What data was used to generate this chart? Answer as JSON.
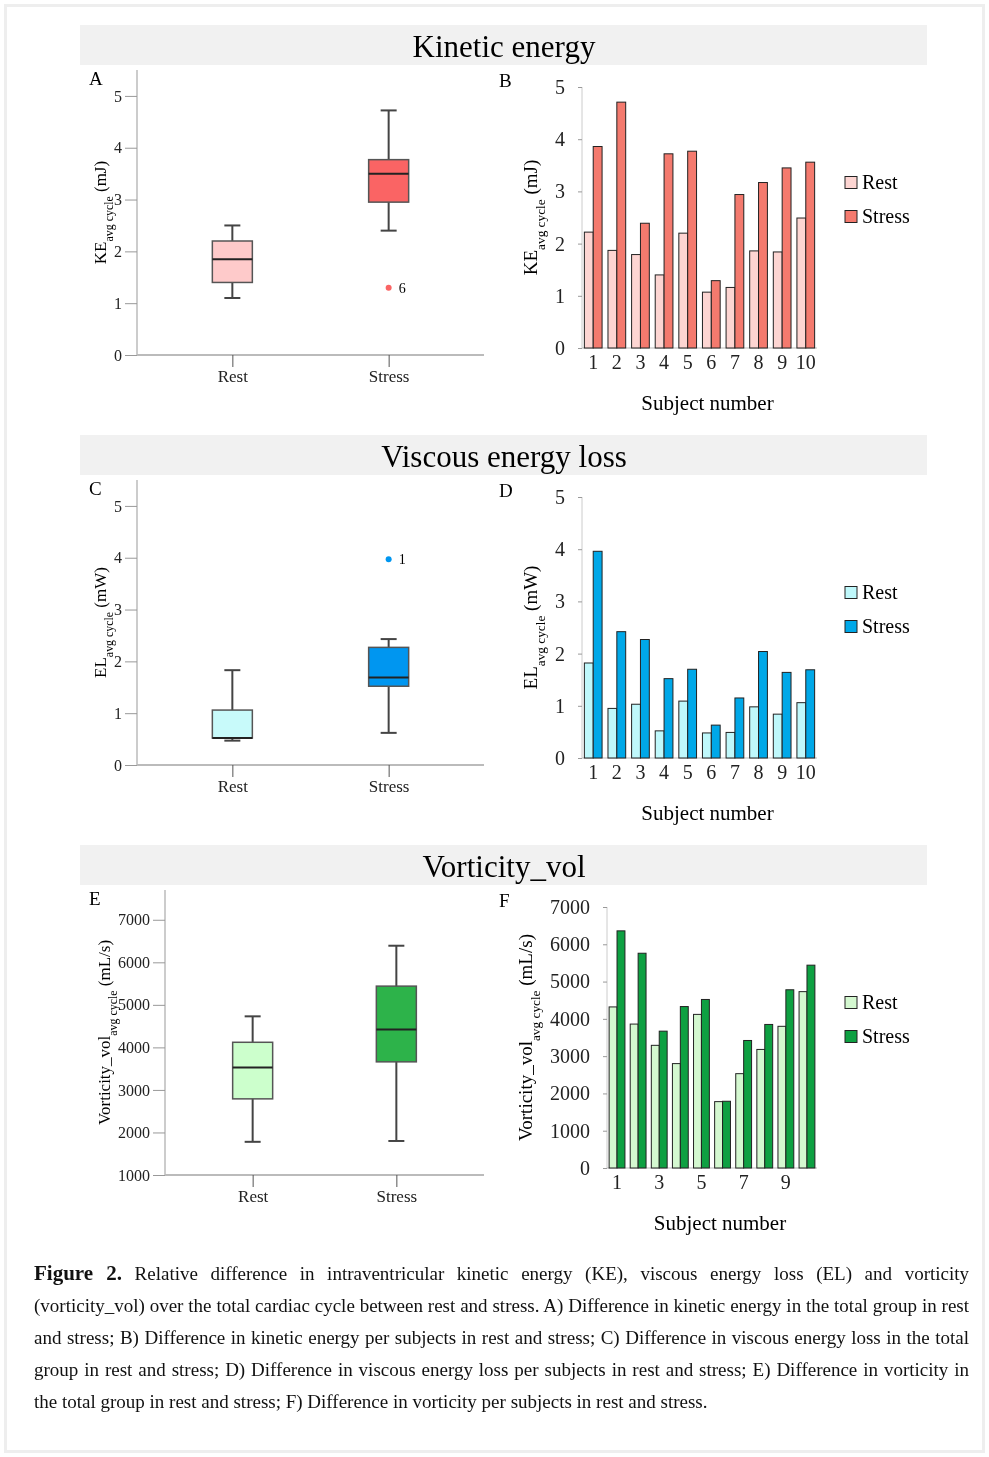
{
  "chart_data": [
    {
      "type": "box",
      "title": "Kinetic energy",
      "ylabel": "KE$_{avg cycle}$ (mJ)",
      "categories": [
        "Rest",
        "Stress"
      ],
      "colors": [
        "#fecaca",
        "#fa6464"
      ],
      "ylim": [
        0,
        5.5
      ],
      "yticks": [
        0,
        1,
        2,
        3,
        4,
        5
      ],
      "boxes": [
        {
          "low": 1.1,
          "q1": 1.4,
          "median": 1.85,
          "q3": 2.2,
          "high": 2.5
        },
        {
          "low": 2.4,
          "q1": 2.95,
          "median": 3.5,
          "q3": 3.77,
          "high": 4.72,
          "outliers": [
            1.3
          ]
        }
      ],
      "annotations": [
        "A",
        "6"
      ]
    },
    {
      "type": "bar",
      "xlabel": "Subject number",
      "ylabel": "KE$_{avg cycle}$ (mJ)",
      "categories": [
        "1",
        "2",
        "3",
        "4",
        "5",
        "6",
        "7",
        "8",
        "9",
        "10"
      ],
      "ylim": [
        0,
        5
      ],
      "yticks": [
        0,
        1,
        2,
        3,
        4,
        5
      ],
      "legend": "right",
      "series": [
        {
          "name": "Rest",
          "color": "#fdd5d2",
          "values": [
            2.22,
            1.87,
            1.79,
            1.4,
            2.2,
            1.07,
            1.16,
            1.86,
            1.84,
            2.49
          ]
        },
        {
          "name": "Stress",
          "color": "#f47a6e",
          "values": [
            3.86,
            4.71,
            2.39,
            3.72,
            3.77,
            1.29,
            2.94,
            3.17,
            3.45,
            3.56
          ]
        }
      ],
      "annotations": [
        "B"
      ]
    },
    {
      "type": "box",
      "title": "Viscous energy loss",
      "ylabel": "EL$_{avg cycle}$ (mW)",
      "categories": [
        "Rest",
        "Stress"
      ],
      "colors": [
        "#c8fafa",
        "#0096f0"
      ],
      "ylim": [
        0,
        5.5
      ],
      "yticks": [
        0,
        1,
        2,
        3,
        4,
        5
      ],
      "boxes": [
        {
          "low": 0.47,
          "q1": 0.52,
          "median": 0.52,
          "q3": 1.06,
          "high": 1.83
        },
        {
          "low": 0.62,
          "q1": 1.52,
          "median": 1.69,
          "q3": 2.27,
          "high": 2.43,
          "outliers": [
            3.97
          ]
        }
      ],
      "annotations": [
        "C",
        "1"
      ]
    },
    {
      "type": "bar",
      "xlabel": "Subject number",
      "ylabel": "EL$_{avg cycle}$ (mW)",
      "categories": [
        "1",
        "2",
        "3",
        "4",
        "5",
        "6",
        "7",
        "8",
        "9",
        "10"
      ],
      "ylim": [
        0,
        5
      ],
      "yticks": [
        0,
        1,
        2,
        3,
        4,
        5
      ],
      "legend": "right",
      "series": [
        {
          "name": "Rest",
          "color": "#bff8fb",
          "values": [
            1.82,
            0.95,
            1.03,
            0.52,
            1.09,
            0.48,
            0.49,
            0.98,
            0.84,
            1.06
          ]
        },
        {
          "name": "Stress",
          "color": "#00a8e8",
          "values": [
            3.96,
            2.42,
            2.27,
            1.52,
            1.7,
            0.63,
            1.15,
            2.04,
            1.64,
            1.69
          ]
        }
      ],
      "annotations": [
        "D"
      ]
    },
    {
      "type": "box",
      "title": "Vorticity_vol",
      "ylabel": "Vorticity_vol$_{avg cycle}$ (mL/s)",
      "categories": [
        "Rest",
        "Stress"
      ],
      "colors": [
        "#ccffcc",
        "#2db34a"
      ],
      "ylim": [
        1000,
        7700
      ],
      "yticks": [
        1000,
        2000,
        3000,
        4000,
        5000,
        6000,
        7000
      ],
      "boxes": [
        {
          "low": 1780,
          "q1": 2790,
          "median": 3530,
          "q3": 4120,
          "high": 4730
        },
        {
          "low": 1800,
          "q1": 3660,
          "median": 4420,
          "q3": 5440,
          "high": 6390
        }
      ],
      "annotations": [
        "E"
      ]
    },
    {
      "type": "bar",
      "xlabel": "Subject number",
      "ylabel": "Vorticity_vol$_{avg cycle}$ (mL/s)",
      "categories": [
        "1",
        null,
        "3",
        null,
        "5",
        null,
        "7",
        null,
        "9",
        null
      ],
      "ylim": [
        0,
        7000
      ],
      "yticks": [
        0,
        1000,
        2000,
        3000,
        4000,
        5000,
        6000,
        7000
      ],
      "legend": "right",
      "series": [
        {
          "name": "Rest",
          "color": "#d4f8d0",
          "values": [
            4320,
            3860,
            3290,
            2800,
            4120,
            1780,
            2530,
            3180,
            3800,
            4730
          ]
        },
        {
          "name": "Stress",
          "color": "#0ea042",
          "values": [
            6360,
            5760,
            3670,
            4330,
            4520,
            1790,
            3420,
            3850,
            4780,
            5440
          ]
        }
      ],
      "annotations": [
        "F",
        "Figure 2.",
        "Relative difference in intraventricular kinetic energy (KE), viscous energy loss (EL) and vorticity (vorticity_vol) over the total cardiac cycle between rest and stress. A) Difference in kinetic energy in the total group in rest and stress; B) Difference in kinetic energy per subjects in rest and stress; C) Difference in viscous energy loss in the total group in rest and stress; D) Difference in viscous energy loss per subjects in rest and stress; E) Difference in vorticity in the total group in rest and stress; F) Difference in vorticity per subjects in rest and stress."
      ]
    }
  ]
}
